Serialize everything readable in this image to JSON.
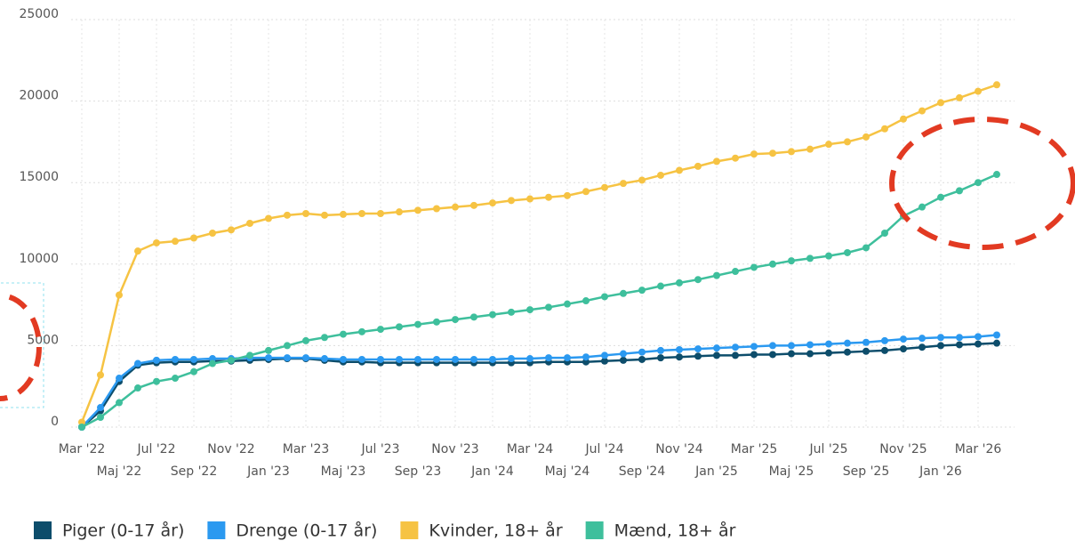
{
  "chart_data": {
    "type": "line",
    "categories": [
      "Mar '22",
      null,
      "Maj '22",
      null,
      "Jul '22",
      null,
      "Sep '22",
      null,
      "Nov '22",
      null,
      "Jan '23",
      null,
      "Mar '23",
      null,
      "Maj '23",
      null,
      "Jul '23",
      null,
      "Sep '23",
      null,
      "Nov '23",
      null,
      "Jan '24",
      null,
      "Mar '24",
      null,
      "Maj '24",
      null,
      "Jul '24",
      null,
      "Sep '24",
      null,
      "Nov '24",
      null,
      "Jan '25",
      null,
      "Mar '25",
      null,
      "Maj '25",
      null,
      "Jul '25",
      null,
      "Sep '25",
      null,
      "Nov '25",
      null,
      "Jan '26",
      null,
      "Mar '26",
      null
    ],
    "series": [
      {
        "name": "Piger (0-17 år)",
        "color": "#0d4d6b",
        "values": [
          0,
          1000,
          2800,
          3800,
          3950,
          4000,
          4000,
          4050,
          4050,
          4100,
          4150,
          4200,
          4200,
          4100,
          4000,
          4000,
          3950,
          3950,
          3950,
          3950,
          3950,
          3950,
          3950,
          3950,
          3950,
          4000,
          4000,
          4000,
          4050,
          4100,
          4150,
          4250,
          4300,
          4350,
          4400,
          4400,
          4450,
          4450,
          4500,
          4500,
          4550,
          4600,
          4650,
          4700,
          4800,
          4900,
          5000,
          5050,
          5100,
          5150
        ]
      },
      {
        "name": "Drenge (0-17 år)",
        "color": "#2b99f0",
        "values": [
          0,
          1200,
          3000,
          3900,
          4100,
          4150,
          4150,
          4200,
          4200,
          4250,
          4250,
          4250,
          4250,
          4200,
          4150,
          4150,
          4150,
          4150,
          4150,
          4150,
          4150,
          4150,
          4150,
          4200,
          4200,
          4250,
          4250,
          4300,
          4400,
          4500,
          4600,
          4700,
          4750,
          4800,
          4850,
          4900,
          4950,
          5000,
          5000,
          5050,
          5100,
          5150,
          5200,
          5300,
          5400,
          5450,
          5500,
          5500,
          5550,
          5650
        ]
      },
      {
        "name": "Kvinder, 18+ år",
        "color": "#f6c343",
        "values": [
          300,
          3200,
          8100,
          10800,
          11300,
          11400,
          11600,
          11900,
          12100,
          12500,
          12800,
          13000,
          13100,
          13000,
          13050,
          13100,
          13100,
          13200,
          13300,
          13400,
          13500,
          13600,
          13750,
          13900,
          14000,
          14100,
          14200,
          14450,
          14700,
          14950,
          15150,
          15450,
          15750,
          16000,
          16300,
          16500,
          16750,
          16800,
          16900,
          17050,
          17350,
          17500,
          17800,
          18300,
          18900,
          19400,
          19900,
          20200,
          20600,
          21000
        ]
      },
      {
        "name": "Mænd, 18+ år",
        "color": "#3ebf9c",
        "values": [
          0,
          600,
          1500,
          2400,
          2800,
          3000,
          3400,
          3900,
          4100,
          4400,
          4700,
          5000,
          5300,
          5500,
          5700,
          5850,
          6000,
          6150,
          6300,
          6450,
          6600,
          6750,
          6900,
          7050,
          7200,
          7350,
          7550,
          7750,
          8000,
          8200,
          8400,
          8650,
          8850,
          9050,
          9300,
          9550,
          9800,
          10000,
          10200,
          10350,
          10500,
          10700,
          11000,
          11900,
          12950,
          13500,
          14100,
          14500,
          15000,
          15500
        ]
      }
    ],
    "ylim": [
      0,
      25000
    ],
    "yticks": [
      0,
      5000,
      10000,
      15000,
      20000,
      25000
    ],
    "grid": true,
    "legend": "bottom"
  }
}
